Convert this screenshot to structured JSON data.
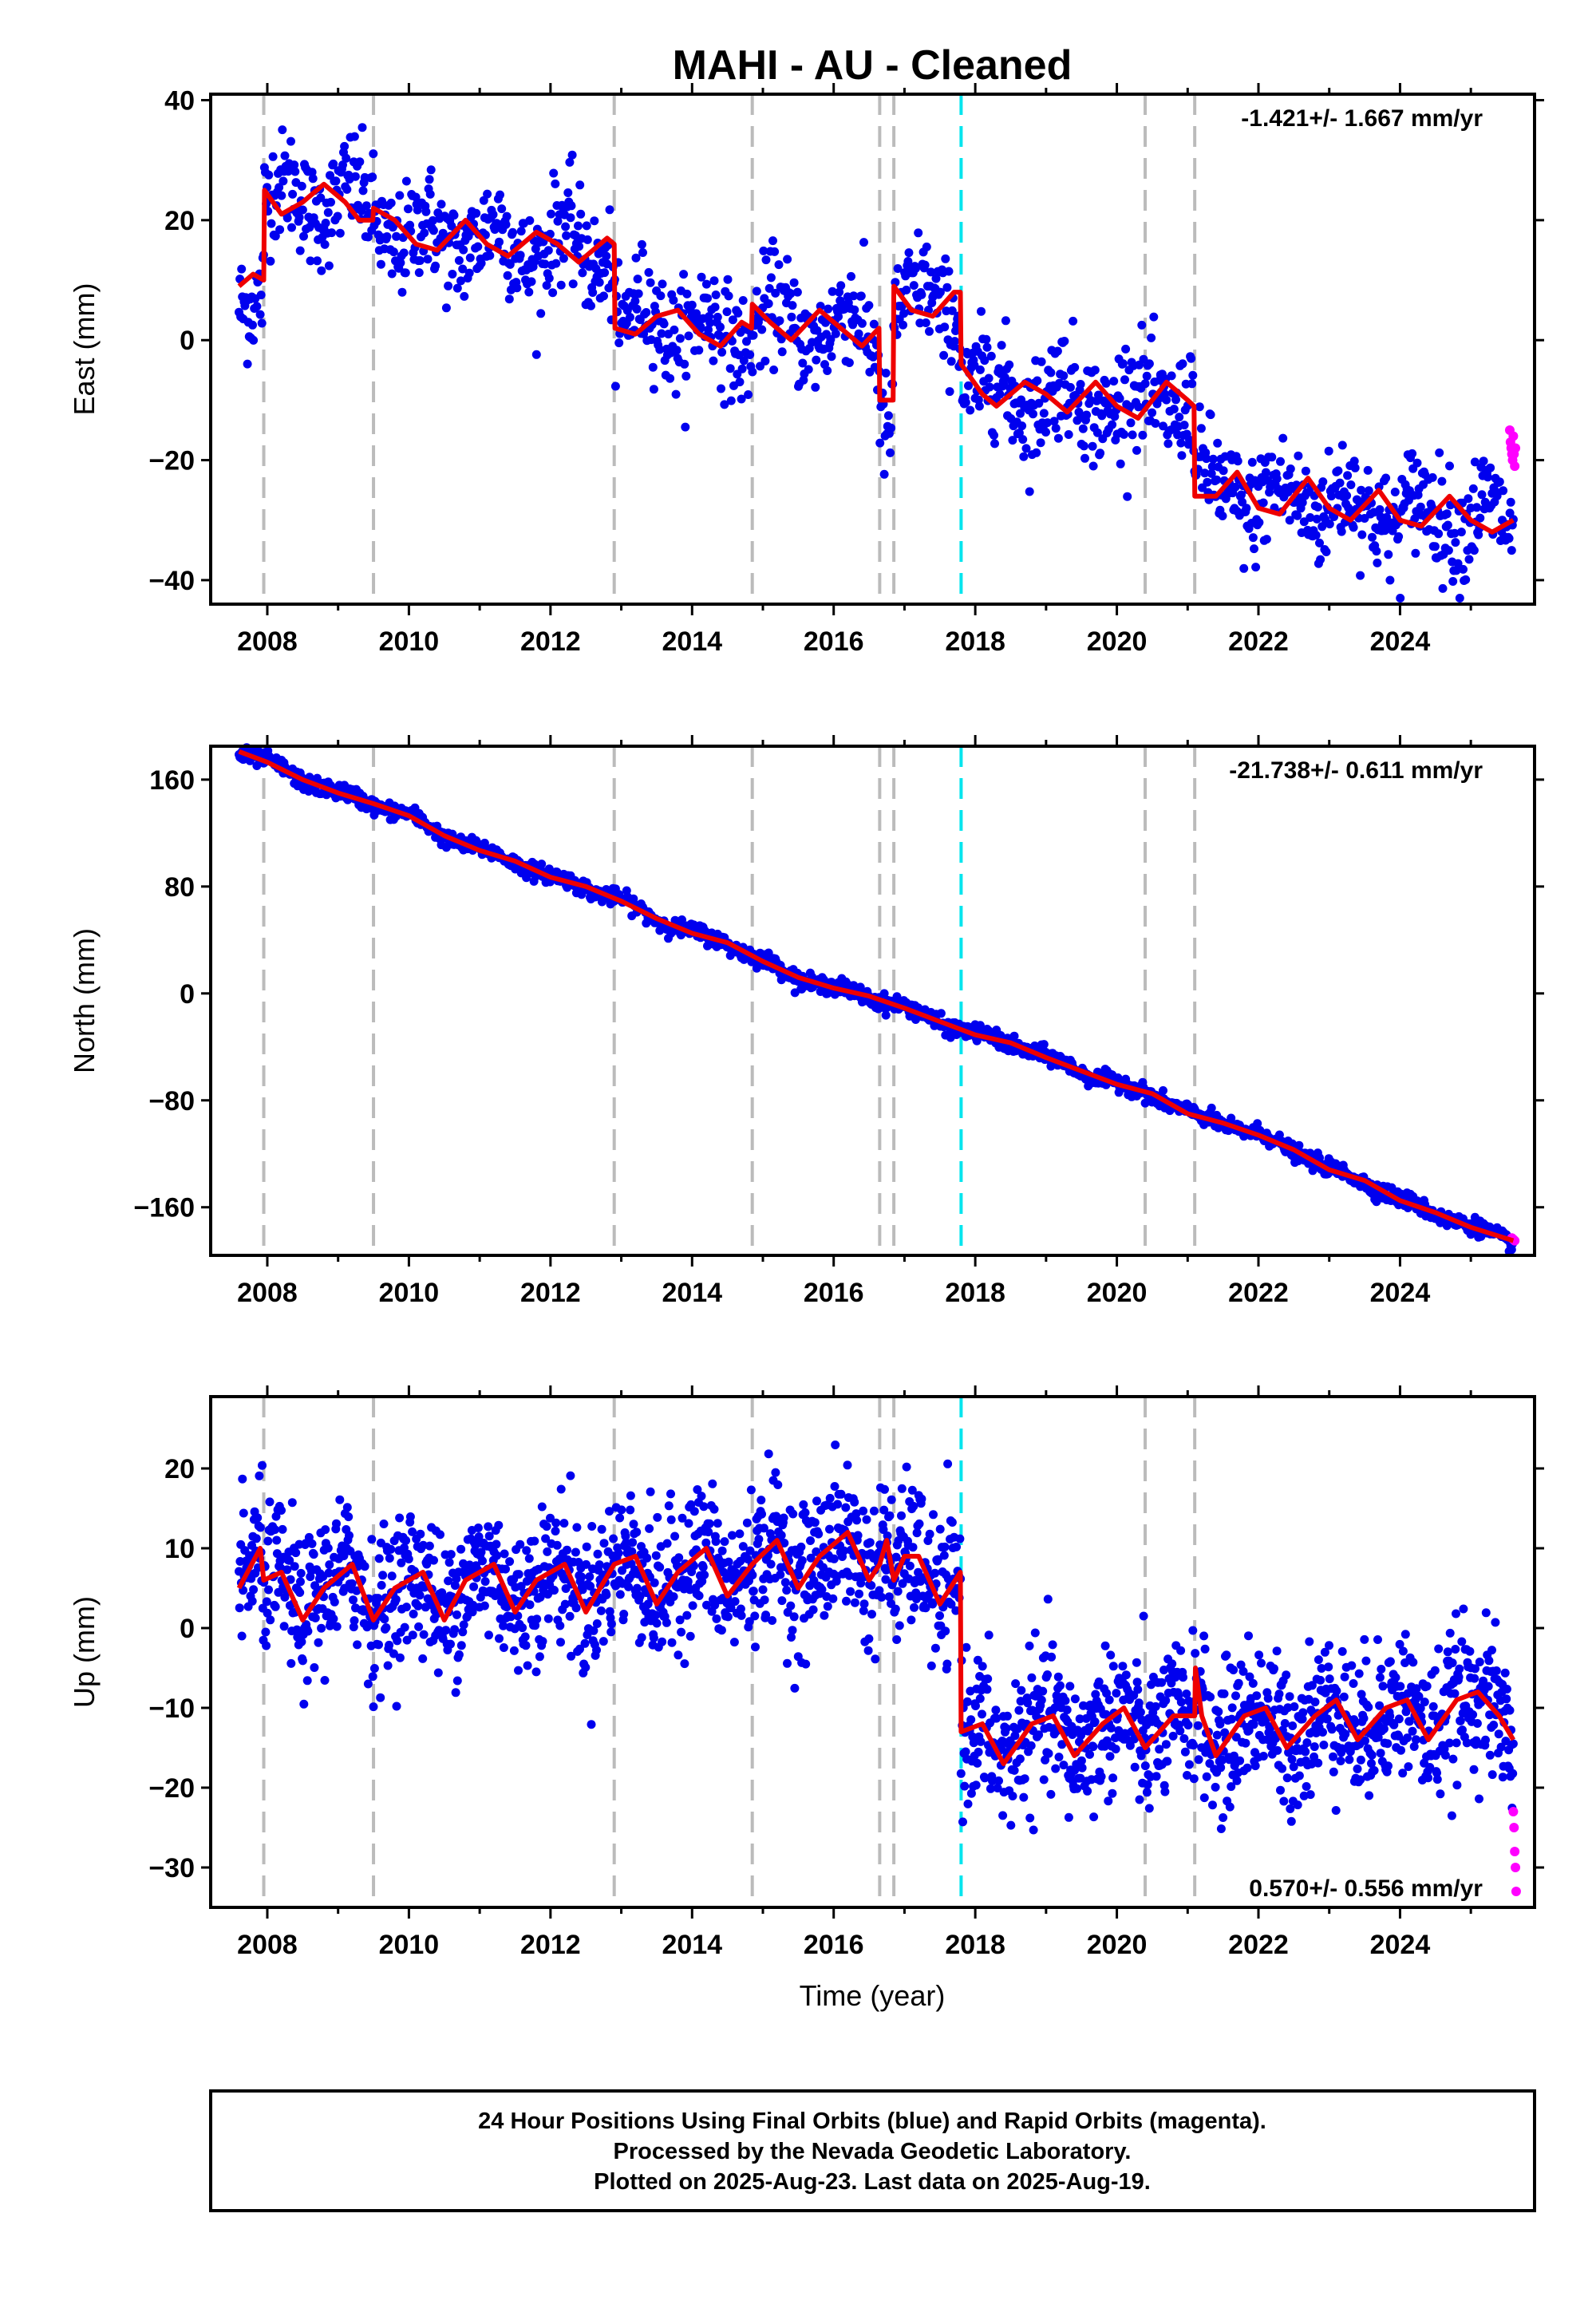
{
  "title": "MAHI  - AU - Cleaned",
  "colors": {
    "final": "#0000ee",
    "rapid": "#ff00ff",
    "model": "#ee0000",
    "break_equipment": "#bbbbbb",
    "break_event": "#00e5ee"
  },
  "xlabel": "Time (year)",
  "x_ticks": [
    "2008",
    "2010",
    "2012",
    "2014",
    "2016",
    "2018",
    "2020",
    "2022",
    "2024"
  ],
  "footer": [
    "24 Hour Positions Using Final Orbits (blue) and Rapid Orbits (magenta).",
    "Processed by the Nevada Geodetic Laboratory.",
    "Plotted on 2025-Aug-23. Last data on 2025-Aug-19."
  ],
  "chart_data": [
    {
      "type": "scatter",
      "component": "east",
      "ylabel": "East (mm)",
      "rate_text": "-1.421+/- 1.667 mm/yr",
      "xlim": [
        2007.2,
        2025.9
      ],
      "ylim": [
        -44,
        41
      ],
      "y_ticks": [
        40,
        20,
        0,
        -20,
        -40
      ],
      "y_tick_labels": [
        "40",
        "20",
        "0",
        "−20",
        "−40"
      ],
      "grey_breaks": [
        2007.95,
        2009.5,
        2012.9,
        2014.85,
        2016.65,
        2016.85,
        2020.4,
        2021.1
      ],
      "cyan_breaks": [
        2017.8
      ],
      "model": [
        [
          2007.6,
          9
        ],
        [
          2007.8,
          11
        ],
        [
          2007.95,
          10
        ],
        [
          2007.96,
          25
        ],
        [
          2008.2,
          21
        ],
        [
          2008.5,
          23
        ],
        [
          2008.8,
          26
        ],
        [
          2009.1,
          23
        ],
        [
          2009.3,
          20
        ],
        [
          2009.49,
          20
        ],
        [
          2009.5,
          22
        ],
        [
          2009.8,
          20
        ],
        [
          2010.1,
          16
        ],
        [
          2010.4,
          15
        ],
        [
          2010.8,
          20
        ],
        [
          2011.1,
          16
        ],
        [
          2011.4,
          14
        ],
        [
          2011.8,
          18
        ],
        [
          2012.1,
          16
        ],
        [
          2012.4,
          13
        ],
        [
          2012.8,
          17
        ],
        [
          2012.9,
          16
        ],
        [
          2012.91,
          2
        ],
        [
          2013.2,
          1
        ],
        [
          2013.5,
          4
        ],
        [
          2013.8,
          5
        ],
        [
          2014.1,
          1
        ],
        [
          2014.4,
          -1
        ],
        [
          2014.7,
          3
        ],
        [
          2014.84,
          2
        ],
        [
          2014.85,
          6
        ],
        [
          2015.1,
          3
        ],
        [
          2015.4,
          0
        ],
        [
          2015.8,
          5
        ],
        [
          2016.1,
          2
        ],
        [
          2016.4,
          -1
        ],
        [
          2016.64,
          2
        ],
        [
          2016.65,
          -10
        ],
        [
          2016.84,
          -10
        ],
        [
          2016.85,
          9
        ],
        [
          2017.1,
          5
        ],
        [
          2017.4,
          4
        ],
        [
          2017.7,
          8
        ],
        [
          2017.79,
          8
        ],
        [
          2017.8,
          -4
        ],
        [
          2018.1,
          -9
        ],
        [
          2018.3,
          -11
        ],
        [
          2018.7,
          -7
        ],
        [
          2019.0,
          -9
        ],
        [
          2019.3,
          -12
        ],
        [
          2019.7,
          -7
        ],
        [
          2020.0,
          -11
        ],
        [
          2020.3,
          -13
        ],
        [
          2020.7,
          -7
        ],
        [
          2021.0,
          -10
        ],
        [
          2021.09,
          -11
        ],
        [
          2021.1,
          -26
        ],
        [
          2021.4,
          -26
        ],
        [
          2021.7,
          -22
        ],
        [
          2022.0,
          -28
        ],
        [
          2022.3,
          -29
        ],
        [
          2022.7,
          -23
        ],
        [
          2023.0,
          -28
        ],
        [
          2023.3,
          -30
        ],
        [
          2023.7,
          -25
        ],
        [
          2024.0,
          -30
        ],
        [
          2024.3,
          -31
        ],
        [
          2024.7,
          -26
        ],
        [
          2025.0,
          -30
        ],
        [
          2025.3,
          -32
        ],
        [
          2025.6,
          -30
        ]
      ],
      "rapid": [
        [
          2025.55,
          -15
        ],
        [
          2025.56,
          -17
        ],
        [
          2025.57,
          -18
        ],
        [
          2025.58,
          -19
        ],
        [
          2025.59,
          -20
        ],
        [
          2025.6,
          -16
        ],
        [
          2025.61,
          -19
        ],
        [
          2025.62,
          -21
        ],
        [
          2025.63,
          -18
        ]
      ]
    },
    {
      "type": "scatter",
      "component": "north",
      "ylabel": "North (mm)",
      "rate_text": "-21.738+/- 0.611 mm/yr",
      "xlim": [
        2007.2,
        2025.9
      ],
      "ylim": [
        -196,
        185
      ],
      "y_ticks": [
        160,
        80,
        0,
        -80,
        -160
      ],
      "y_tick_labels": [
        "160",
        "80",
        "0",
        "−80",
        "−160"
      ],
      "grey_breaks": [
        2007.95,
        2009.5,
        2012.9,
        2014.85,
        2016.65,
        2016.85,
        2020.4,
        2021.1
      ],
      "cyan_breaks": [
        2017.8
      ],
      "model": [
        [
          2007.6,
          181
        ],
        [
          2008.0,
          173
        ],
        [
          2008.5,
          160
        ],
        [
          2009.0,
          150
        ],
        [
          2009.5,
          142
        ],
        [
          2010.0,
          133
        ],
        [
          2010.5,
          118
        ],
        [
          2011.0,
          107
        ],
        [
          2011.5,
          99
        ],
        [
          2012.0,
          87
        ],
        [
          2012.5,
          80
        ],
        [
          2013.0,
          69
        ],
        [
          2013.5,
          56
        ],
        [
          2014.0,
          45
        ],
        [
          2014.5,
          38
        ],
        [
          2015.0,
          24
        ],
        [
          2015.5,
          12
        ],
        [
          2016.0,
          4
        ],
        [
          2016.5,
          -2
        ],
        [
          2017.0,
          -11
        ],
        [
          2017.5,
          -21
        ],
        [
          2018.0,
          -31
        ],
        [
          2018.5,
          -37
        ],
        [
          2019.0,
          -48
        ],
        [
          2019.5,
          -58
        ],
        [
          2020.0,
          -68
        ],
        [
          2020.5,
          -75
        ],
        [
          2021.0,
          -90
        ],
        [
          2021.5,
          -97
        ],
        [
          2022.0,
          -106
        ],
        [
          2022.5,
          -117
        ],
        [
          2023.0,
          -132
        ],
        [
          2023.5,
          -140
        ],
        [
          2024.0,
          -155
        ],
        [
          2024.5,
          -164
        ],
        [
          2025.0,
          -175
        ],
        [
          2025.6,
          -185
        ]
      ],
      "rapid": [
        [
          2025.58,
          -183
        ],
        [
          2025.6,
          -184
        ],
        [
          2025.62,
          -185
        ]
      ]
    },
    {
      "type": "scatter",
      "component": "up",
      "ylabel": "Up (mm)",
      "rate_text": "0.570+/- 0.556 mm/yr",
      "xlim": [
        2007.2,
        2025.9
      ],
      "ylim": [
        -35,
        29
      ],
      "y_ticks": [
        20,
        10,
        0,
        -10,
        -20,
        -30
      ],
      "y_tick_labels": [
        "20",
        "10",
        "0",
        "−10",
        "−20",
        "−30"
      ],
      "grey_breaks": [
        2007.95,
        2009.5,
        2012.9,
        2014.85,
        2016.65,
        2016.85,
        2020.4,
        2021.1
      ],
      "cyan_breaks": [
        2017.8
      ],
      "model": [
        [
          2007.6,
          5
        ],
        [
          2007.9,
          10
        ],
        [
          2007.95,
          6
        ],
        [
          2008.2,
          7
        ],
        [
          2008.5,
          1
        ],
        [
          2008.8,
          5
        ],
        [
          2009.2,
          8
        ],
        [
          2009.5,
          1
        ],
        [
          2009.8,
          5
        ],
        [
          2010.2,
          7
        ],
        [
          2010.5,
          1
        ],
        [
          2010.8,
          6
        ],
        [
          2011.2,
          8
        ],
        [
          2011.5,
          2
        ],
        [
          2011.8,
          6
        ],
        [
          2012.2,
          8
        ],
        [
          2012.5,
          2
        ],
        [
          2012.9,
          8
        ],
        [
          2013.2,
          9
        ],
        [
          2013.5,
          3
        ],
        [
          2013.8,
          7
        ],
        [
          2014.2,
          10
        ],
        [
          2014.5,
          4
        ],
        [
          2014.85,
          8
        ],
        [
          2015.2,
          11
        ],
        [
          2015.5,
          5
        ],
        [
          2015.8,
          9
        ],
        [
          2016.2,
          12
        ],
        [
          2016.5,
          6
        ],
        [
          2016.65,
          8
        ],
        [
          2016.75,
          11
        ],
        [
          2016.85,
          6
        ],
        [
          2017.0,
          9
        ],
        [
          2017.2,
          9
        ],
        [
          2017.5,
          3
        ],
        [
          2017.79,
          7
        ],
        [
          2017.8,
          -13
        ],
        [
          2018.1,
          -12
        ],
        [
          2018.4,
          -17
        ],
        [
          2018.8,
          -12
        ],
        [
          2019.1,
          -11
        ],
        [
          2019.4,
          -16
        ],
        [
          2019.8,
          -12
        ],
        [
          2020.1,
          -10
        ],
        [
          2020.4,
          -15
        ],
        [
          2020.8,
          -11
        ],
        [
          2021.1,
          -11
        ],
        [
          2021.11,
          -5
        ],
        [
          2021.2,
          -11
        ],
        [
          2021.4,
          -16
        ],
        [
          2021.8,
          -11
        ],
        [
          2022.1,
          -10
        ],
        [
          2022.4,
          -15
        ],
        [
          2022.8,
          -11
        ],
        [
          2023.1,
          -9
        ],
        [
          2023.4,
          -14
        ],
        [
          2023.8,
          -10
        ],
        [
          2024.1,
          -9
        ],
        [
          2024.4,
          -14
        ],
        [
          2024.8,
          -9
        ],
        [
          2025.1,
          -8
        ],
        [
          2025.4,
          -11
        ],
        [
          2025.6,
          -14
        ]
      ],
      "rapid": [
        [
          2025.6,
          -23
        ],
        [
          2025.61,
          -25
        ],
        [
          2025.62,
          -28
        ],
        [
          2025.63,
          -30
        ],
        [
          2025.64,
          -33
        ]
      ]
    }
  ]
}
